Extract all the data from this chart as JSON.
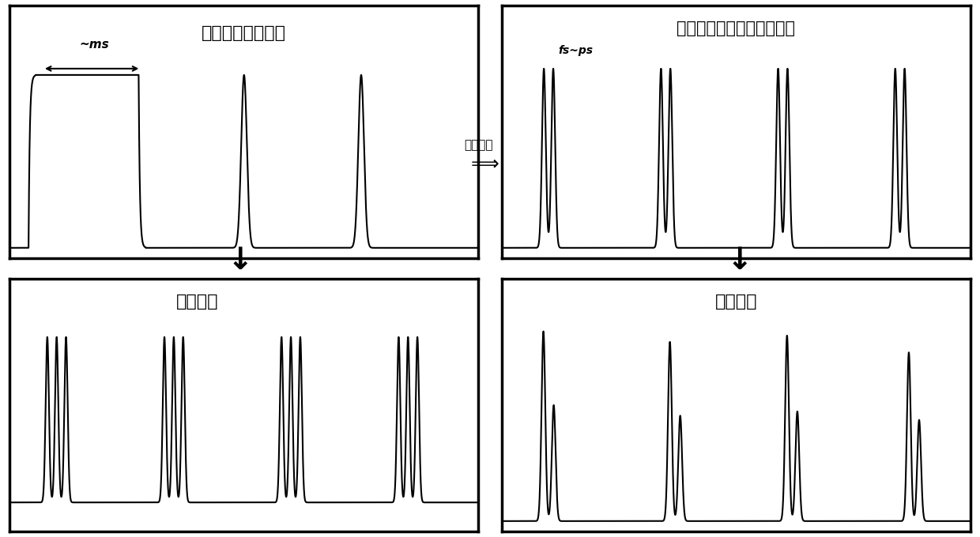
{
  "title_tl": "普通飞秒激光脉冲",
  "title_tr": "时间整形飞秒激光双脉冲链",
  "title_bl": "三脉冲链",
  "title_br": "能量分配",
  "label_tl_ms": "~ms",
  "label_tr_ps": "fs~ps",
  "label_middle": "时间整形",
  "arrow_label": "时间整形",
  "bg_color": "#ffffff",
  "line_color": "#000000",
  "border_color": "#000000"
}
